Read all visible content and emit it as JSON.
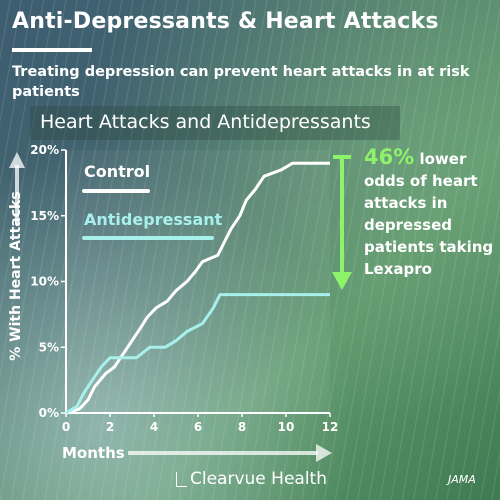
{
  "header": {
    "title": "Anti-Depressants & Heart Attacks",
    "subtitle": "Treating depression can prevent heart attacks in at risk patients"
  },
  "annotation": {
    "percent": "46%",
    "text_after_percent": " lower odds of heart attacks in depressed patients taking Lexapro"
  },
  "brand": "Clearvue Health",
  "source": "JAMA",
  "colors": {
    "control": "#ffffff",
    "antidepressant": "#a8f0ec",
    "accent": "#8ef36a"
  },
  "chart_data": {
    "type": "line",
    "title": "Heart Attacks and Antidepressants",
    "xlabel": "Months",
    "ylabel": "% With Heart Attacks",
    "xlim": [
      0,
      12
    ],
    "ylim": [
      0,
      20
    ],
    "x_ticks": [
      "0",
      "2",
      "4",
      "6",
      "8",
      "10",
      "12"
    ],
    "y_ticks": [
      "0%",
      "5%",
      "10%",
      "15%",
      "20%"
    ],
    "grid": false,
    "legend_placement": "top-left",
    "series": [
      {
        "name": "Control",
        "color": "#ffffff",
        "points": [
          [
            0,
            0
          ],
          [
            0.6,
            0.3
          ],
          [
            1.0,
            1.0
          ],
          [
            1.3,
            2.0
          ],
          [
            1.8,
            3.0
          ],
          [
            2.2,
            3.5
          ],
          [
            2.6,
            4.5
          ],
          [
            3.0,
            5.5
          ],
          [
            3.4,
            6.5
          ],
          [
            3.7,
            7.3
          ],
          [
            4.1,
            8.0
          ],
          [
            4.6,
            8.5
          ],
          [
            5.0,
            9.3
          ],
          [
            5.5,
            10.0
          ],
          [
            5.9,
            10.8
          ],
          [
            6.2,
            11.5
          ],
          [
            6.9,
            12.0
          ],
          [
            7.2,
            13.0
          ],
          [
            7.5,
            14.0
          ],
          [
            7.9,
            15.0
          ],
          [
            8.2,
            16.2
          ],
          [
            8.6,
            17.0
          ],
          [
            9.0,
            18.0
          ],
          [
            9.8,
            18.5
          ],
          [
            10.3,
            19.0
          ],
          [
            12.0,
            19.0
          ]
        ]
      },
      {
        "name": "Antidepressant",
        "color": "#a8f0ec",
        "points": [
          [
            0,
            0
          ],
          [
            0.5,
            0.5
          ],
          [
            0.8,
            1.5
          ],
          [
            1.2,
            2.5
          ],
          [
            1.6,
            3.5
          ],
          [
            2.0,
            4.2
          ],
          [
            3.2,
            4.2
          ],
          [
            3.8,
            5.0
          ],
          [
            4.5,
            5.0
          ],
          [
            5.0,
            5.5
          ],
          [
            5.5,
            6.2
          ],
          [
            6.2,
            6.8
          ],
          [
            6.7,
            8.0
          ],
          [
            7.0,
            9.0
          ],
          [
            12.0,
            9.0
          ]
        ]
      }
    ]
  }
}
